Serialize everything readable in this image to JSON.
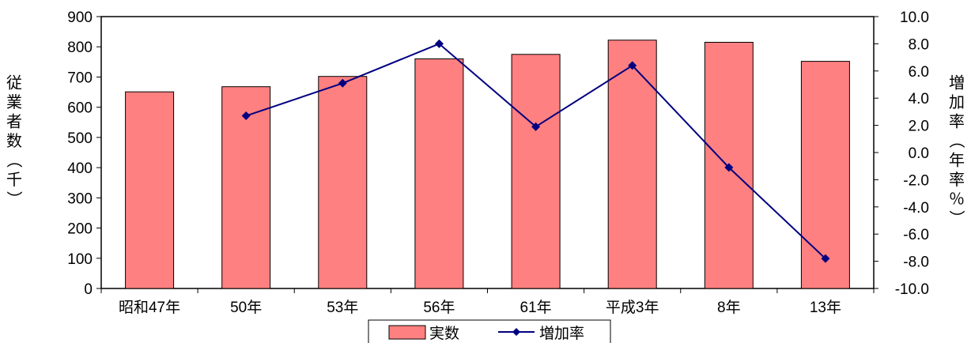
{
  "chart_data": {
    "type": "bar",
    "categories": [
      "昭和47年",
      "50年",
      "53年",
      "56年",
      "61年",
      "平成3年",
      "8年",
      "13年"
    ],
    "series": [
      {
        "name": "実数",
        "type": "bar",
        "axis": "left",
        "color": "#FF8080",
        "values": [
          651,
          668,
          702,
          760,
          775,
          822,
          815,
          752
        ]
      },
      {
        "name": "増加率",
        "type": "line",
        "axis": "right",
        "color": "#000080",
        "values": [
          null,
          2.7,
          5.1,
          8.0,
          1.9,
          6.4,
          -1.1,
          -7.8
        ]
      }
    ],
    "y_left": {
      "label": "従業者数（千）",
      "range": [
        0,
        900
      ],
      "ticks": [
        "0",
        "100",
        "200",
        "300",
        "400",
        "500",
        "600",
        "700",
        "800",
        "900"
      ]
    },
    "y_right": {
      "label": "増加率（年率％）",
      "range": [
        -10,
        10
      ],
      "ticks": [
        "-10.0",
        "-8.0",
        "-6.0",
        "-4.0",
        "-2.0",
        "0.0",
        "2.0",
        "4.0",
        "6.0",
        "8.0",
        "10.0"
      ]
    },
    "grid": false,
    "legend_position": "bottom"
  }
}
